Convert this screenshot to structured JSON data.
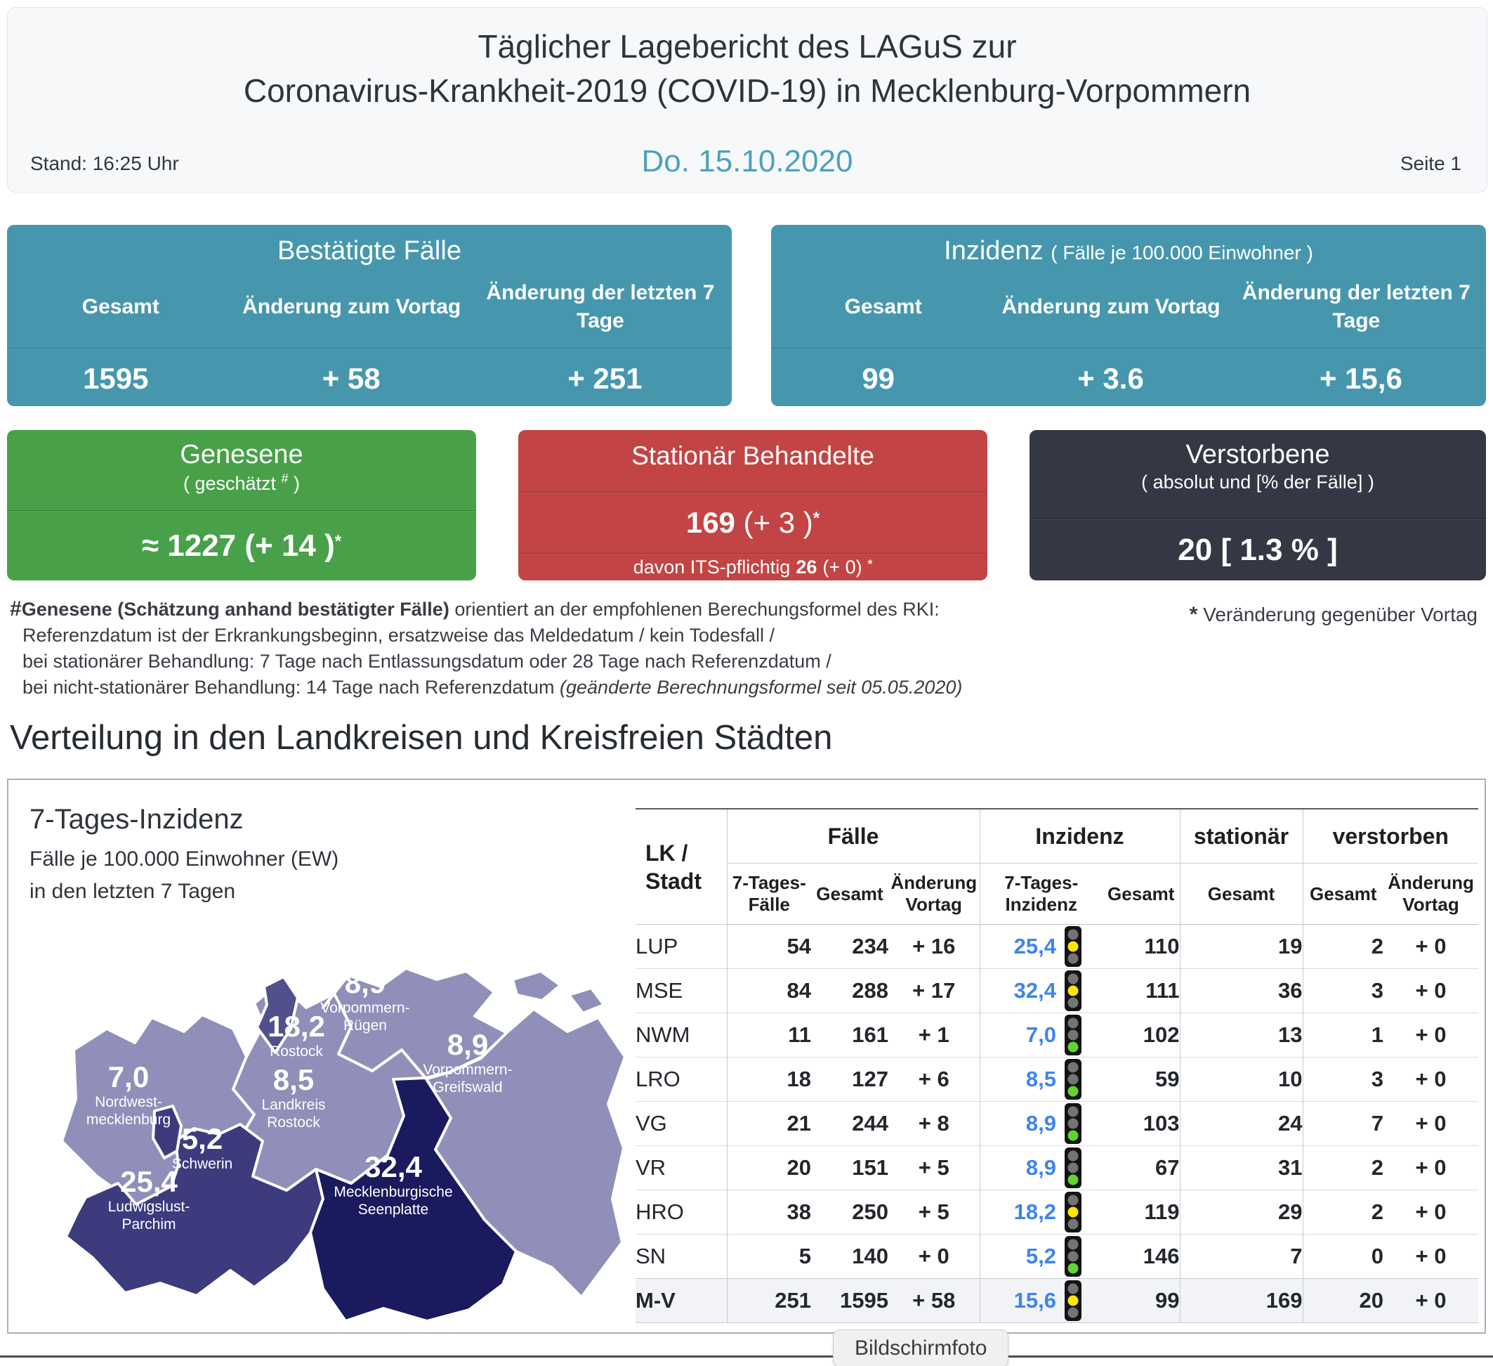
{
  "header": {
    "title_line1": "Täglicher Lagebericht des LAGuS zur",
    "title_line2": "Coronavirus-Krankheit-2019 (COVID-19) in Mecklenburg-Vorpommern",
    "stand": "Stand: 16:25 Uhr",
    "date": "Do. 15.10.2020",
    "page": "Seite 1"
  },
  "cards": {
    "confirmed": {
      "title": "Bestätigte Fälle",
      "col_total": "Gesamt",
      "col_prev": "Änderung zum Vortag",
      "col_week": "Änderung der letzten 7 Tage",
      "val_total": "1595",
      "val_prev": "+ 58",
      "val_week": "+ 251"
    },
    "incidence": {
      "title": "Inzidenz",
      "subtitle": "( Fälle je 100.000 Einwohner )",
      "col_total": "Gesamt",
      "col_prev": "Änderung zum Vortag",
      "col_week": "Änderung der letzten 7 Tage",
      "val_total": "99",
      "val_prev": "+ 3.6",
      "val_week": "+ 15,6"
    },
    "recovered": {
      "title": "Genesene",
      "sub_pre": "( geschätzt",
      "sub_sup": "#",
      "sub_post": ")",
      "value": "≈ 1227 (+ 14 )",
      "star": "*"
    },
    "hospitalized": {
      "title": "Stationär Behandelte",
      "val_main": "169",
      "val_rest": "(+ 3 )",
      "star": "*",
      "its_pre": "davon ITS-pflichtig",
      "its_val": "26",
      "its_paren": "(+ 0)",
      "its_star": "*"
    },
    "deceased": {
      "title": "Verstorbene",
      "subtitle": "( absolut und [% der Fälle] )",
      "value": "20 [ 1.3 % ]"
    }
  },
  "footnote": {
    "hash": "#",
    "line1_bold": "Genesene (Schätzung anhand bestätigter Fälle)",
    "line1_rest": " orientiert an der empfohlenen Berechungsformel des RKI:",
    "line2": "Referenzdatum ist der Erkrankungsbeginn, ersatzweise das Meldedatum / kein Todesfall /",
    "line3": "bei stationärer Behandlung: 7 Tage nach Entlassungsdatum oder 28 Tage nach Referenzdatum /",
    "line4_main": "bei nicht-stationärer Behandlung: 14 Tage nach Referenzdatum ",
    "line4_italic": "(geänderte Berechnungsformel seit 05.05.2020)",
    "star_sym": "*",
    "star_text": "Veränderung gegenüber Vortag"
  },
  "section_title": "Verteilung in den Landkreisen und Kreisfreien Städten",
  "map": {
    "legend_title": "7-Tages-Inzidenz",
    "legend_line1": "Fälle je 100.000 Einwohner (EW)",
    "legend_line2": "in den letzten 7 Tagen",
    "regions": [
      {
        "id": "nordwestmecklenburg",
        "value": "7,0",
        "name1": "Nordwest-",
        "name2": "mecklenburg",
        "shade": "light"
      },
      {
        "id": "schwerin",
        "value": "5,2",
        "name1": "Schwerin",
        "name2": "",
        "shade": "dark"
      },
      {
        "id": "ludwigslust-parchim",
        "value": "25,4",
        "name1": "Ludwigslust-",
        "name2": "Parchim",
        "shade": "dark"
      },
      {
        "id": "landkreis-rostock",
        "value": "8,5",
        "name1": "Landkreis",
        "name2": "Rostock",
        "shade": "light"
      },
      {
        "id": "rostock",
        "value": "18,2",
        "name1": "Rostock",
        "name2": "",
        "shade": "medium"
      },
      {
        "id": "vorpommern-ruegen",
        "value": "8,9",
        "name1": "Vorpommern-",
        "name2": "Rügen",
        "shade": "light"
      },
      {
        "id": "vorpommern-greifswald",
        "value": "8,9",
        "name1": "Vorpommern-",
        "name2": "Greifswald",
        "shade": "light"
      },
      {
        "id": "mecklenburgische-seenplatte",
        "value": "32,4",
        "name1": "Mecklenburgische",
        "name2": "Seenplatte",
        "shade": "darkest"
      }
    ]
  },
  "table": {
    "region_header_line1": "LK /",
    "region_header_line2": "Stadt",
    "groups": [
      "Fälle",
      "Inzidenz",
      "stationär",
      "verstorben"
    ],
    "sub": [
      "7-Tages-Fälle",
      "Gesamt",
      "Änderung Vortag",
      "7-Tages-Inzidenz",
      "Gesamt",
      "Gesamt",
      "Gesamt",
      "Änderung Vortag"
    ],
    "rows": [
      {
        "region": "LUP",
        "week_cases": "54",
        "total": "234",
        "delta": "+ 16",
        "incidence7": "25,4",
        "light": "yellow",
        "incidence_total": "110",
        "hospital": "19",
        "deaths": "2",
        "deaths_delta": "+ 0",
        "bold": false
      },
      {
        "region": "MSE",
        "week_cases": "84",
        "total": "288",
        "delta": "+ 17",
        "incidence7": "32,4",
        "light": "yellow",
        "incidence_total": "111",
        "hospital": "36",
        "deaths": "3",
        "deaths_delta": "+ 0",
        "bold": false
      },
      {
        "region": "NWM",
        "week_cases": "11",
        "total": "161",
        "delta": "+ 1",
        "incidence7": "7,0",
        "light": "green",
        "incidence_total": "102",
        "hospital": "13",
        "deaths": "1",
        "deaths_delta": "+ 0",
        "bold": false
      },
      {
        "region": "LRO",
        "week_cases": "18",
        "total": "127",
        "delta": "+ 6",
        "incidence7": "8,5",
        "light": "green",
        "incidence_total": "59",
        "hospital": "10",
        "deaths": "3",
        "deaths_delta": "+ 0",
        "bold": false
      },
      {
        "region": "VG",
        "week_cases": "21",
        "total": "244",
        "delta": "+ 8",
        "incidence7": "8,9",
        "light": "green",
        "incidence_total": "103",
        "hospital": "24",
        "deaths": "7",
        "deaths_delta": "+ 0",
        "bold": false
      },
      {
        "region": "VR",
        "week_cases": "20",
        "total": "151",
        "delta": "+ 5",
        "incidence7": "8,9",
        "light": "green",
        "incidence_total": "67",
        "hospital": "31",
        "deaths": "2",
        "deaths_delta": "+ 0",
        "bold": false
      },
      {
        "region": "HRO",
        "week_cases": "38",
        "total": "250",
        "delta": "+ 5",
        "incidence7": "18,2",
        "light": "yellow",
        "incidence_total": "119",
        "hospital": "29",
        "deaths": "2",
        "deaths_delta": "+ 0",
        "bold": false
      },
      {
        "region": "SN",
        "week_cases": "5",
        "total": "140",
        "delta": "+ 0",
        "incidence7": "5,2",
        "light": "green",
        "incidence_total": "146",
        "hospital": "7",
        "deaths": "0",
        "deaths_delta": "+ 0",
        "bold": false
      },
      {
        "region": "M-V",
        "week_cases": "251",
        "total": "1595",
        "delta": "+ 58",
        "incidence7": "15,6",
        "light": "yellow",
        "incidence_total": "99",
        "hospital": "169",
        "deaths": "20",
        "deaths_delta": "+ 0",
        "bold": true
      }
    ]
  },
  "tooltip": {
    "label": "Bildschirmfoto"
  },
  "colors": {
    "teal": "#4697ae",
    "green": "#48a148",
    "red": "#c24444",
    "dark": "#333844",
    "date_accent": "#4ba2bb",
    "link_blue": "#3d84f0",
    "map_light": "#8f8fb9",
    "map_medium": "#50508c",
    "map_dark": "#3b3b7e",
    "map_darkest": "#1a1a5e",
    "light_off": "#747474",
    "light_yellow": "#ffe600",
    "light_green": "#61d430",
    "light_body": "#141414"
  }
}
